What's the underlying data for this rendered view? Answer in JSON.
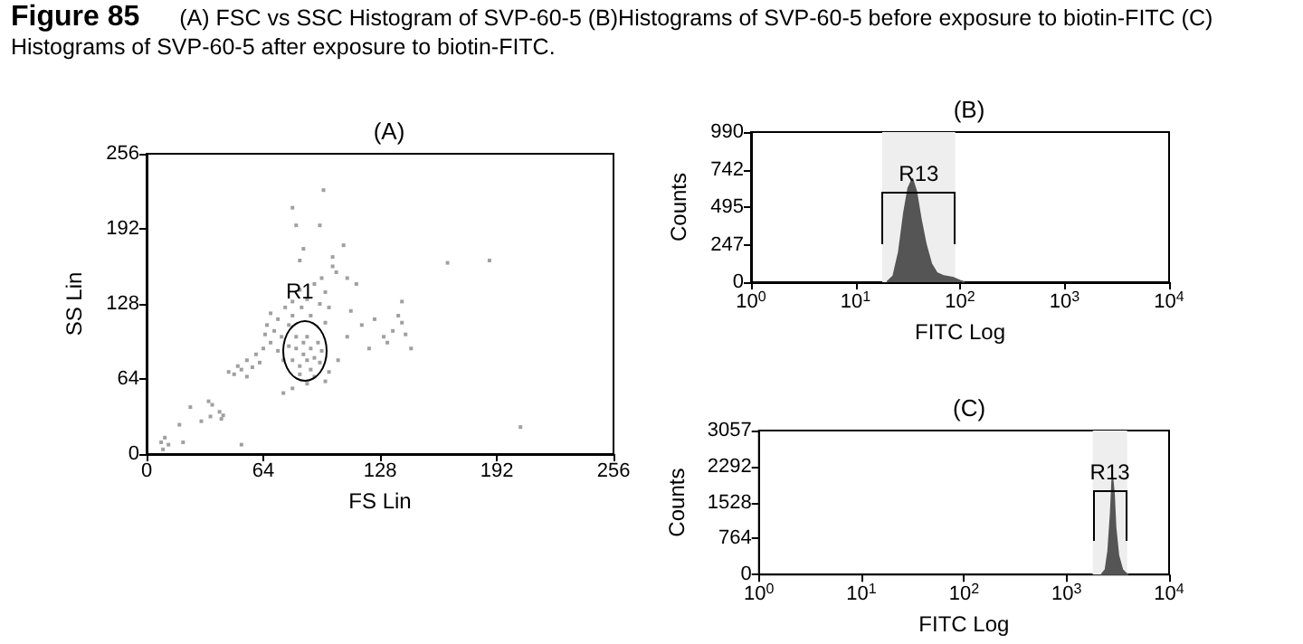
{
  "chart_data": [
    {
      "type": "other",
      "title": "Figure 85",
      "subtitle": "(A) FSC vs SSC Histogram of SVP-60-5 (B)Histograms of SVP-60-5 before exposure to biotin-FITC (C) Histograms of SVP-60-5 after exposure to biotin-FITC."
    },
    {
      "type": "scatter",
      "title": "(A)",
      "xlabel": "FS Lin",
      "ylabel": "SS Lin",
      "color": "#888888",
      "marker": "square",
      "grid": false,
      "x": [
        8,
        9,
        10,
        12,
        18,
        20,
        24,
        30,
        34,
        36,
        40,
        42,
        41,
        52,
        35,
        45,
        48,
        50,
        52,
        55,
        55,
        58,
        60,
        62,
        64,
        65,
        66,
        68,
        68,
        70,
        72,
        72,
        74,
        75,
        76,
        78,
        78,
        80,
        80,
        82,
        84,
        85,
        88,
        90,
        92,
        95,
        96,
        98,
        100,
        102,
        104,
        98,
        80,
        82,
        84,
        86,
        86,
        88,
        88,
        90,
        90,
        92,
        94,
        95,
        96,
        84,
        92,
        75,
        80,
        88,
        98,
        100,
        105,
        110,
        112,
        118,
        122,
        125,
        130,
        132,
        135,
        138,
        140,
        142,
        145,
        140,
        80,
        82,
        86,
        84,
        95,
        97,
        108,
        102,
        110,
        115,
        165,
        188,
        205
      ],
      "values": [
        10,
        4,
        14,
        8,
        25,
        10,
        40,
        28,
        45,
        42,
        36,
        33,
        30,
        8,
        32,
        70,
        68,
        75,
        72,
        80,
        66,
        74,
        85,
        78,
        90,
        102,
        110,
        95,
        120,
        105,
        88,
        115,
        100,
        80,
        125,
        92,
        110,
        130,
        118,
        100,
        140,
        125,
        132,
        118,
        145,
        128,
        150,
        138,
        125,
        160,
        155,
        112,
        80,
        90,
        75,
        95,
        85,
        80,
        100,
        90,
        72,
        82,
        95,
        78,
        88,
        68,
        66,
        52,
        56,
        60,
        62,
        70,
        80,
        100,
        122,
        110,
        90,
        115,
        100,
        95,
        105,
        118,
        130,
        102,
        90,
        112,
        210,
        195,
        175,
        165,
        195,
        225,
        178,
        168,
        150,
        145,
        163,
        165,
        23
      ],
      "xlim": [
        0,
        256
      ],
      "xticks": [
        0,
        64,
        128,
        192,
        256
      ],
      "ylim": [
        0,
        256
      ],
      "yticks": [
        0,
        64,
        128,
        192,
        256
      ],
      "annotations": [
        {
          "text": "R1",
          "x": 84,
          "y": 138
        }
      ]
    },
    {
      "type": "area",
      "title": "(B)",
      "xlabel": "FITC Log",
      "ylabel": "Counts",
      "color": "#555555",
      "log": "x",
      "grid": false,
      "x": [
        20,
        23,
        26,
        29,
        32,
        35,
        38,
        42,
        47,
        53,
        60,
        70,
        85,
        100,
        110
      ],
      "values": [
        0,
        40,
        200,
        450,
        620,
        680,
        600,
        420,
        250,
        120,
        60,
        40,
        30,
        10,
        0
      ],
      "xlim": [
        1,
        10000
      ],
      "xticks": [
        {
          "value": 1,
          "label": "10$^{0}$"
        },
        {
          "value": 10,
          "label": "10$^{1}$"
        },
        {
          "value": 100,
          "label": "10$^{2}$"
        },
        {
          "value": 1000,
          "label": "10$^{3}$"
        },
        {
          "value": 10000,
          "label": "10$^{4}$"
        }
      ],
      "ylim": [
        0,
        990
      ],
      "yticks": [
        0,
        247,
        495,
        742,
        990
      ],
      "bands": [
        {
          "axis": "x",
          "from": 18,
          "to": 90,
          "label": "R13"
        }
      ]
    },
    {
      "type": "area",
      "title": "(C)",
      "xlabel": "FITC Log",
      "ylabel": "Counts",
      "color": "#555555",
      "log": "x",
      "grid": false,
      "x": [
        2200,
        2400,
        2550,
        2700,
        2800,
        2900,
        3000,
        3200,
        3500,
        3800,
        4000
      ],
      "values": [
        0,
        100,
        500,
        1300,
        2050,
        1700,
        1000,
        400,
        100,
        20,
        0
      ],
      "xlim": [
        1,
        10000
      ],
      "xticks": [
        {
          "value": 1,
          "label": "10$^{0}$"
        },
        {
          "value": 10,
          "label": "10$^{1}$"
        },
        {
          "value": 100,
          "label": "10$^{2}$"
        },
        {
          "value": 1000,
          "label": "10$^{3}$"
        },
        {
          "value": 10000,
          "label": "10$^{4}$"
        }
      ],
      "ylim": [
        0,
        3057
      ],
      "yticks": [
        0,
        764,
        1528,
        2292,
        3057
      ],
      "bands": [
        {
          "axis": "x",
          "from": 1800,
          "to": 3900,
          "label": "R13"
        }
      ]
    }
  ]
}
